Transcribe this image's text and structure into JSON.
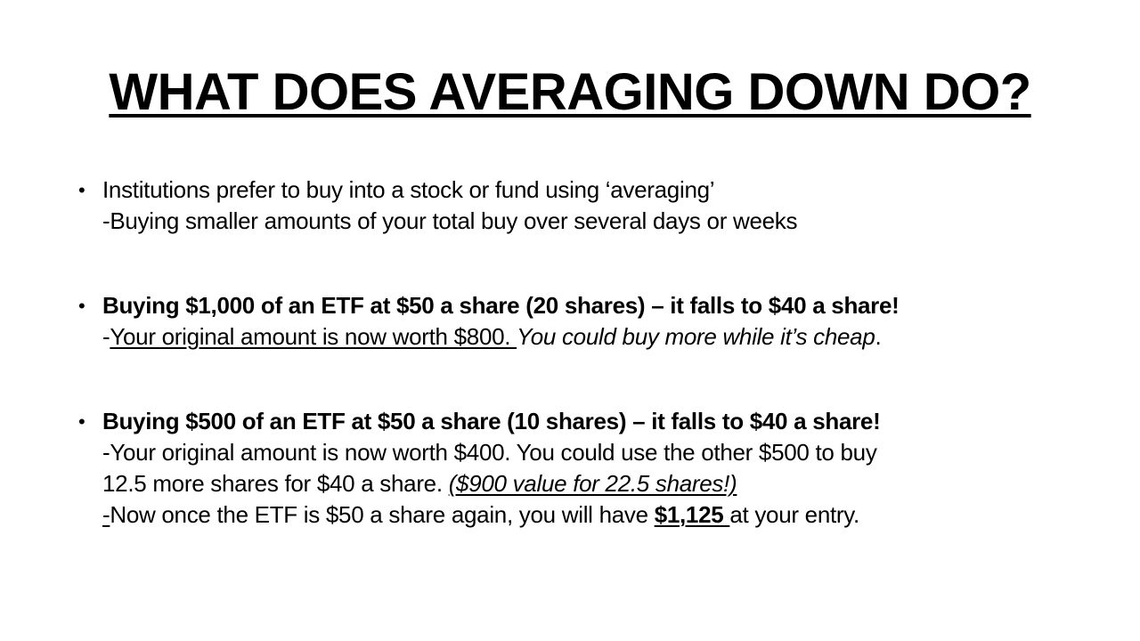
{
  "title": "WHAT DOES AVERAGING DOWN DO?",
  "bullet_glyph": "•",
  "bullets": [
    {
      "line1": "Institutions prefer to buy into a stock or fund using ‘averaging’",
      "line2": "-Buying smaller amounts of your total buy over several days or weeks"
    },
    {
      "line1": "Buying $1,000 of an ETF at $50 a share (20 shares) – it falls to $40 a share!",
      "line2_prefix": "-",
      "line2_underlined": "Your original amount is now worth $800. ",
      "line2_italic": "You could buy more while it’s cheap",
      "line2_end": "."
    },
    {
      "line1": "Buying $500 of an ETF at $50 a share (10 shares) – it falls to $40 a share!",
      "line2": "-Your original amount is now worth $400. You could use the other $500 to buy",
      "line3_text": "12.5 more shares for $40 a share. ",
      "line3_italic_underlined": "($900 value for 22.5 shares!)",
      "line4_prefix": "-",
      "line4_text": "Now once the ETF is $50 a share again, you will have ",
      "line4_bold": "$1,125 ",
      "line4_end": "at your entry."
    }
  ]
}
